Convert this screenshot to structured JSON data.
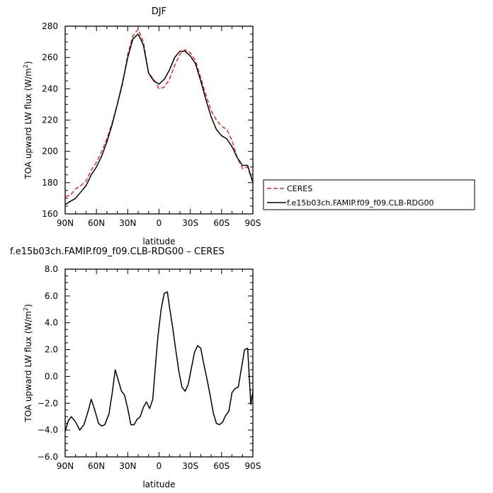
{
  "chart_data": [
    {
      "type": "line",
      "title": "DJF",
      "xlabel": "latitude",
      "ylabel": "TOA upward LW flux (W/m²)",
      "x_tick_labels": [
        "90N",
        "60N",
        "30N",
        "0",
        "30S",
        "60S",
        "90S"
      ],
      "x_ticks": [
        90,
        60,
        30,
        0,
        -30,
        -60,
        -90
      ],
      "xlim": [
        90,
        -90
      ],
      "ylim": [
        160,
        280
      ],
      "y_ticks": [
        160,
        180,
        200,
        220,
        240,
        260,
        280
      ],
      "y_tick_labels": [
        "160",
        "180",
        "200",
        "220",
        "240",
        "260",
        "280"
      ],
      "legend": "right",
      "grid": false,
      "series": [
        {
          "name": "CERES",
          "color": "#e8282a",
          "dash": "dashed",
          "x": [
            90,
            85,
            80,
            75,
            70,
            65,
            60,
            55,
            50,
            45,
            40,
            35,
            30,
            25,
            20,
            15,
            10,
            5,
            0,
            -5,
            -10,
            -15,
            -20,
            -25,
            -30,
            -35,
            -40,
            -45,
            -50,
            -55,
            -60,
            -65,
            -70,
            -75,
            -80,
            -85,
            -90
          ],
          "values": [
            171,
            172,
            176,
            178,
            181,
            188,
            193,
            200,
            208,
            218,
            230,
            243,
            262,
            274,
            278,
            270,
            250,
            246,
            240,
            241,
            246,
            255,
            262,
            265,
            263,
            258,
            247,
            236,
            226,
            220,
            216,
            214,
            207,
            196,
            189,
            190,
            180
          ]
        },
        {
          "name": "f.e15b03ch.FAMIP.f09_f09.CLB-RDG00",
          "color": "#000000",
          "dash": "solid",
          "x": [
            90,
            85,
            80,
            75,
            70,
            65,
            60,
            55,
            50,
            45,
            40,
            35,
            30,
            25,
            20,
            15,
            10,
            5,
            0,
            -5,
            -10,
            -15,
            -20,
            -25,
            -30,
            -35,
            -40,
            -45,
            -50,
            -55,
            -60,
            -65,
            -70,
            -75,
            -80,
            -85,
            -90
          ],
          "values": [
            166,
            168,
            170,
            174,
            178,
            185,
            190,
            197,
            206,
            217,
            230,
            244,
            260,
            272,
            275,
            268,
            250,
            245,
            243,
            246,
            252,
            260,
            264,
            264,
            261,
            256,
            245,
            233,
            222,
            214,
            210,
            208,
            203,
            196,
            191,
            191,
            180
          ]
        }
      ]
    },
    {
      "type": "line",
      "title": "f.e15b03ch.FAMIP.f09_f09.CLB-RDG00 – CERES",
      "xlabel": "latitude",
      "ylabel": "TOA upward LW flux (W/m²)",
      "x_tick_labels": [
        "90N",
        "60N",
        "30N",
        "0",
        "30S",
        "60S",
        "90S"
      ],
      "x_ticks": [
        90,
        60,
        30,
        0,
        -30,
        -60,
        -90
      ],
      "xlim": [
        90,
        -90
      ],
      "ylim": [
        -6,
        8
      ],
      "y_ticks": [
        -6,
        -4,
        -2,
        0,
        2,
        4,
        6,
        8
      ],
      "y_tick_labels": [
        "−6.0",
        "−4.0",
        "−2.0",
        "0.0",
        "2.0",
        "4.0",
        "6.0",
        "8.0"
      ],
      "grid": false,
      "series": [
        {
          "name": "",
          "color": "#000000",
          "dash": "solid",
          "x": [
            90,
            87,
            84,
            80,
            76,
            72,
            68,
            65,
            62,
            58,
            55,
            52,
            48,
            45,
            42,
            39,
            36,
            33,
            30,
            27,
            24,
            21,
            18,
            15,
            12,
            9,
            6,
            3,
            1,
            -2,
            -5,
            -8,
            -10,
            -13,
            -16,
            -19,
            -22,
            -25,
            -28,
            -31,
            -34,
            -37,
            -40,
            -43,
            -46,
            -49,
            -52,
            -55,
            -58,
            -61,
            -64,
            -67,
            -70,
            -73,
            -76,
            -79,
            -82,
            -85,
            -88,
            -90
          ],
          "values": [
            -4.1,
            -3.3,
            -3.0,
            -3.4,
            -4.0,
            -3.6,
            -2.6,
            -1.7,
            -2.4,
            -3.5,
            -3.7,
            -3.6,
            -2.8,
            -1.3,
            0.5,
            -0.3,
            -1.1,
            -1.4,
            -2.4,
            -3.6,
            -3.6,
            -3.2,
            -3.0,
            -2.3,
            -1.9,
            -2.4,
            -1.7,
            1.2,
            3.0,
            5.0,
            6.2,
            6.3,
            5.2,
            3.7,
            2.0,
            0.4,
            -0.8,
            -1.1,
            -0.6,
            0.6,
            1.8,
            2.3,
            2.1,
            0.9,
            -0.2,
            -1.4,
            -2.7,
            -3.5,
            -3.6,
            -3.4,
            -2.9,
            -2.6,
            -1.2,
            -0.9,
            -0.8,
            0.6,
            2.0,
            2.1,
            -2.1,
            -1.1
          ]
        }
      ]
    }
  ]
}
